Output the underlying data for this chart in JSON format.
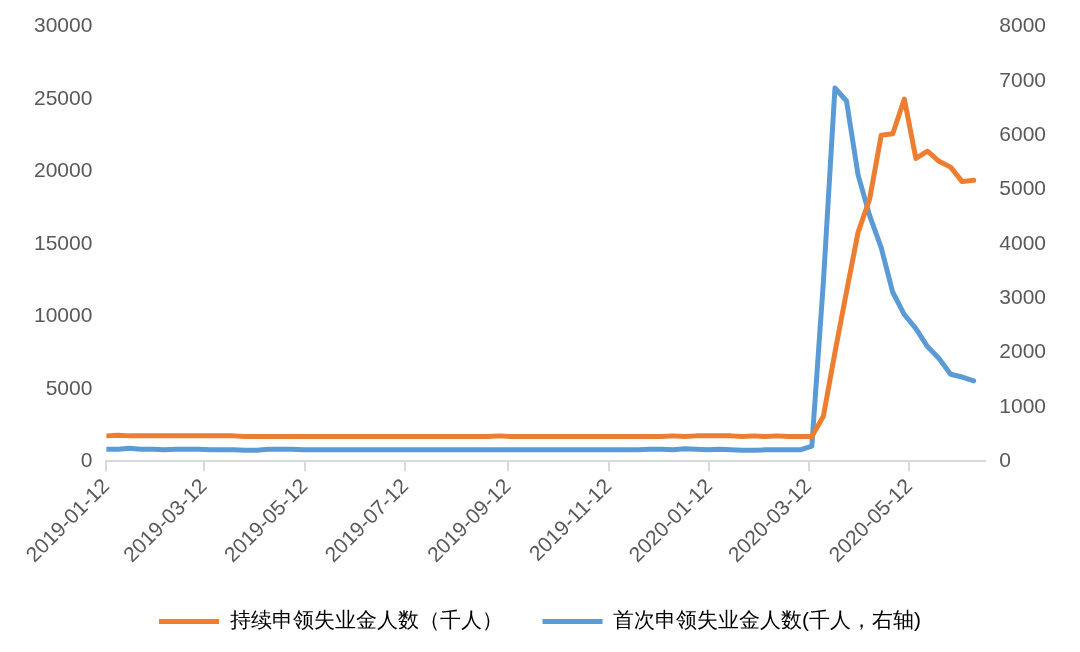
{
  "chart_data": {
    "type": "line",
    "x": [
      "2019-01-12",
      "2019-01-19",
      "2019-01-26",
      "2019-02-02",
      "2019-02-09",
      "2019-02-16",
      "2019-02-23",
      "2019-03-02",
      "2019-03-09",
      "2019-03-16",
      "2019-03-23",
      "2019-03-30",
      "2019-04-06",
      "2019-04-13",
      "2019-04-20",
      "2019-04-27",
      "2019-05-04",
      "2019-05-11",
      "2019-05-18",
      "2019-05-25",
      "2019-06-01",
      "2019-06-08",
      "2019-06-15",
      "2019-06-22",
      "2019-06-29",
      "2019-07-06",
      "2019-07-13",
      "2019-07-20",
      "2019-07-27",
      "2019-08-03",
      "2019-08-10",
      "2019-08-17",
      "2019-08-24",
      "2019-08-31",
      "2019-09-07",
      "2019-09-14",
      "2019-09-21",
      "2019-09-28",
      "2019-10-05",
      "2019-10-12",
      "2019-10-19",
      "2019-10-26",
      "2019-11-02",
      "2019-11-09",
      "2019-11-16",
      "2019-11-23",
      "2019-11-30",
      "2019-12-07",
      "2019-12-14",
      "2019-12-21",
      "2019-12-28",
      "2020-01-04",
      "2020-01-11",
      "2020-01-18",
      "2020-01-25",
      "2020-02-01",
      "2020-02-08",
      "2020-02-15",
      "2020-02-22",
      "2020-02-29",
      "2020-03-07",
      "2020-03-14",
      "2020-03-21",
      "2020-03-28",
      "2020-04-04",
      "2020-04-11",
      "2020-04-18",
      "2020-04-25",
      "2020-05-02",
      "2020-05-09",
      "2020-05-16",
      "2020-05-23",
      "2020-05-30",
      "2020-06-06",
      "2020-06-13",
      "2020-06-20"
    ],
    "series": [
      {
        "name": "持续申领失业金人数（千人）",
        "color": "#ed7d31",
        "values": [
          1750,
          1800,
          1750,
          1750,
          1750,
          1750,
          1750,
          1750,
          1750,
          1750,
          1750,
          1750,
          1700,
          1700,
          1700,
          1700,
          1700,
          1700,
          1700,
          1700,
          1700,
          1700,
          1700,
          1700,
          1700,
          1700,
          1700,
          1700,
          1700,
          1700,
          1700,
          1700,
          1700,
          1700,
          1750,
          1700,
          1700,
          1700,
          1700,
          1700,
          1700,
          1700,
          1700,
          1700,
          1700,
          1700,
          1700,
          1700,
          1700,
          1750,
          1700,
          1750,
          1750,
          1750,
          1750,
          1700,
          1750,
          1700,
          1750,
          1700,
          1700,
          1700,
          3100,
          7500,
          11700,
          15800,
          18100,
          22500,
          22600,
          25000,
          20900,
          21400,
          20700,
          20300,
          19300,
          19400
        ]
      },
      {
        "name": "首次申领失业金人数(千人，右轴)",
        "color": "#5b9bd5",
        "axis": "y2",
        "values": [
          220,
          220,
          240,
          220,
          220,
          210,
          220,
          220,
          220,
          210,
          210,
          210,
          200,
          200,
          220,
          220,
          220,
          210,
          210,
          210,
          210,
          210,
          210,
          210,
          210,
          210,
          210,
          210,
          210,
          210,
          210,
          210,
          210,
          210,
          210,
          210,
          210,
          210,
          210,
          210,
          210,
          210,
          210,
          210,
          210,
          210,
          210,
          220,
          220,
          210,
          230,
          220,
          210,
          220,
          210,
          200,
          200,
          210,
          210,
          210,
          210,
          280,
          3300,
          6870,
          6630,
          5270,
          4520,
          3930,
          3110,
          2700,
          2440,
          2110,
          1890,
          1600,
          1550,
          1480
        ]
      }
    ],
    "xlim": [
      "2019-01-12",
      "2020-06-27"
    ],
    "xticks": [
      "2019-01-12",
      "2019-03-12",
      "2019-05-12",
      "2019-07-12",
      "2019-09-12",
      "2019-11-12",
      "2020-01-12",
      "2020-03-12",
      "2020-05-12"
    ],
    "ylim": [
      0,
      30000
    ],
    "yticks": [
      0,
      5000,
      10000,
      15000,
      20000,
      25000,
      30000
    ],
    "y2lim": [
      0,
      8000
    ],
    "y2ticks": [
      0,
      1000,
      2000,
      3000,
      4000,
      5000,
      6000,
      7000,
      8000
    ],
    "legend": "bottom",
    "grid": false,
    "marker": "none",
    "line_style": "solid"
  }
}
